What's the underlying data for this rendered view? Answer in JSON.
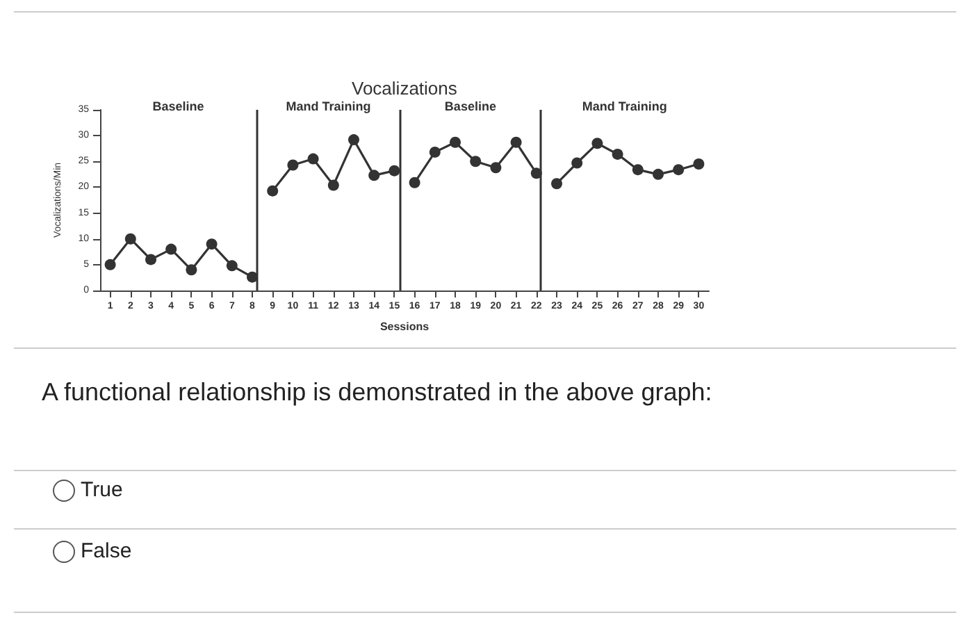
{
  "chart_data": {
    "type": "line",
    "title": "Vocalizations",
    "xlabel": "Sessions",
    "ylabel": "Vocalizations/Min",
    "xlim": [
      0.5,
      30.5
    ],
    "xticks": [
      1,
      2,
      3,
      4,
      5,
      6,
      7,
      8,
      9,
      10,
      11,
      12,
      13,
      14,
      15,
      16,
      17,
      18,
      19,
      20,
      21,
      22,
      23,
      24,
      25,
      26,
      27,
      28,
      29,
      30
    ],
    "ylim": [
      0,
      35
    ],
    "yticks": [
      0,
      5,
      10,
      15,
      20,
      25,
      30,
      35
    ],
    "grid": false,
    "marker": "circle",
    "line_style": "solid",
    "series": [
      {
        "color": "#333333",
        "x": [
          1,
          2,
          3,
          4,
          5,
          6,
          7,
          8
        ],
        "values": [
          5,
          10,
          6,
          8,
          4,
          9,
          4.8,
          2.6
        ]
      },
      {
        "color": "#333333",
        "x": [
          9,
          10,
          11,
          12,
          13,
          14,
          15
        ],
        "values": [
          19.3,
          24.3,
          25.5,
          20.4,
          29.2,
          22.3,
          23.2
        ]
      },
      {
        "color": "#333333",
        "x": [
          16,
          17,
          18,
          19,
          20,
          21,
          22
        ],
        "values": [
          20.9,
          26.8,
          28.7,
          25,
          23.8,
          28.7,
          22.7
        ]
      },
      {
        "color": "#333333",
        "x": [
          23,
          24,
          25,
          26,
          27,
          28,
          29,
          30
        ],
        "values": [
          20.7,
          24.7,
          28.5,
          26.4,
          23.4,
          22.5,
          23.4,
          24.5
        ]
      }
    ],
    "ref_lines": [
      {
        "axis": "x",
        "value": 8.2,
        "color": "#333333"
      },
      {
        "axis": "x",
        "value": 15.3,
        "color": "#333333"
      },
      {
        "axis": "x",
        "value": 22.2,
        "color": "#333333"
      }
    ],
    "annotations": [
      "Baseline",
      "Mand Training",
      "Baseline",
      "Mand Training",
      "A functional relationship is demonstrated in the above graph:",
      "True",
      "False"
    ]
  }
}
